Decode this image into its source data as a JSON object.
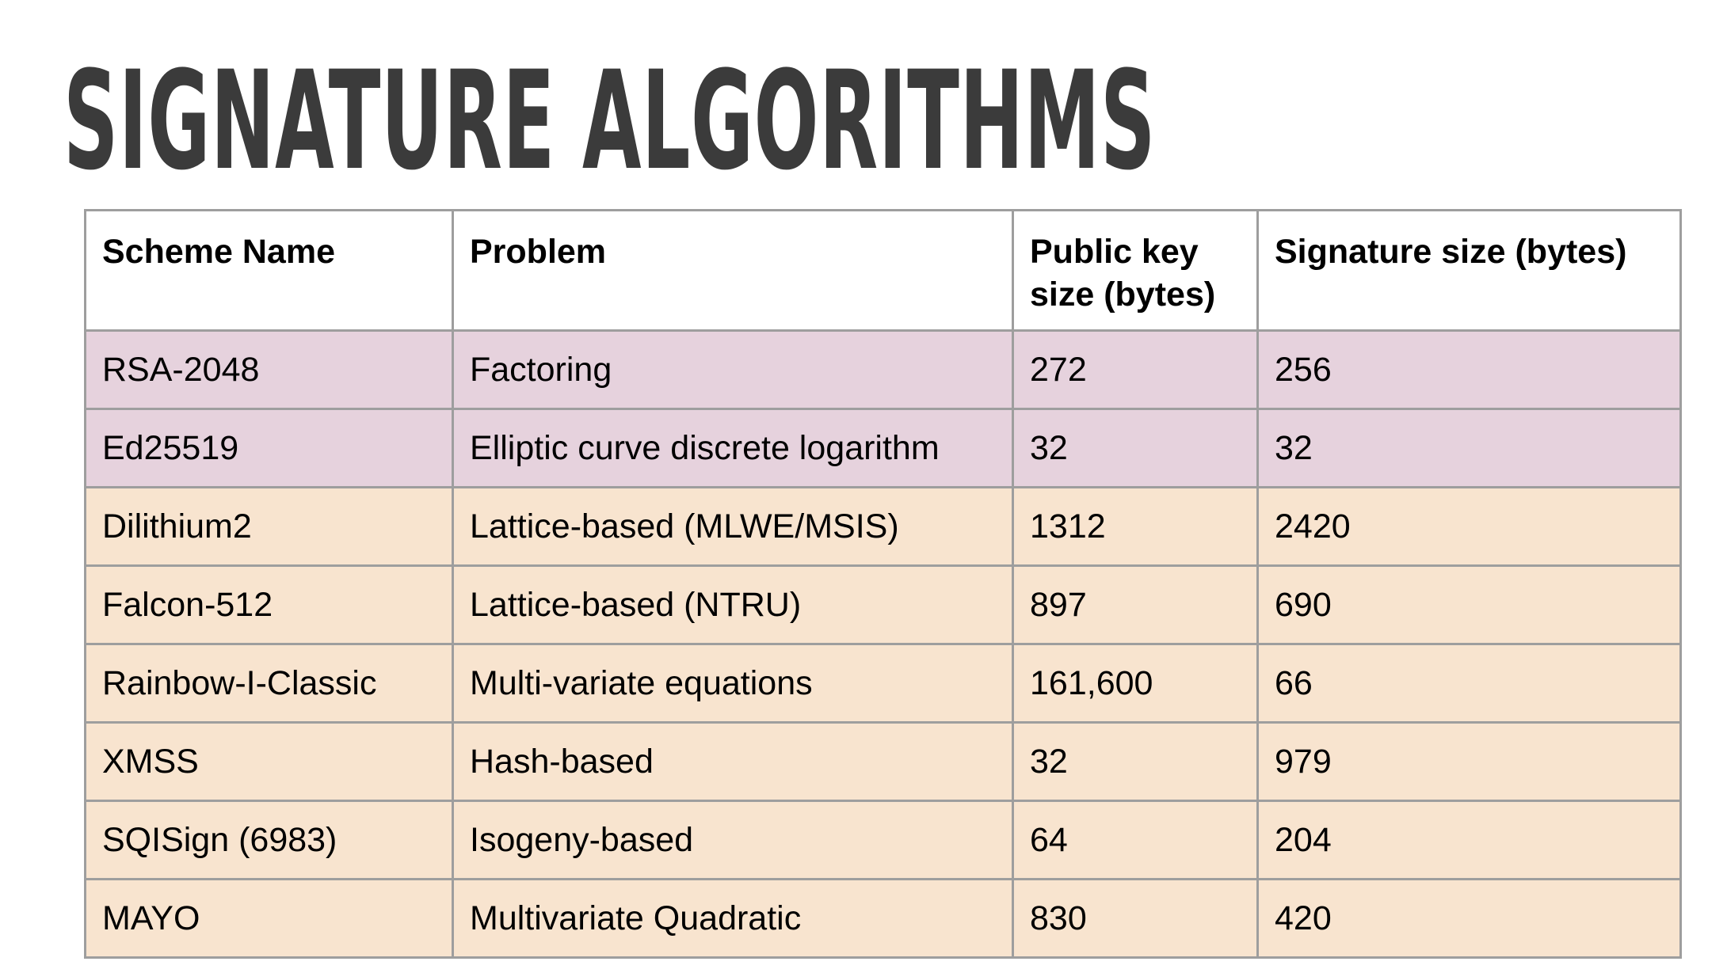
{
  "title": "SIGNATURE ALGORITHMS",
  "table": {
    "headers": [
      "Scheme Name",
      "Problem",
      "Public key size (bytes)",
      "Signature size (bytes)"
    ],
    "rows": [
      {
        "group": "classical",
        "cells": [
          "RSA-2048",
          "Factoring",
          "272",
          "256"
        ]
      },
      {
        "group": "classical",
        "cells": [
          "Ed25519",
          "Elliptic curve discrete logarithm",
          "32",
          "32"
        ]
      },
      {
        "group": "post-quantum",
        "cells": [
          "Dilithium2",
          "Lattice-based (MLWE/MSIS)",
          "1312",
          "2420"
        ]
      },
      {
        "group": "post-quantum",
        "cells": [
          "Falcon-512",
          "Lattice-based (NTRU)",
          "897",
          "690"
        ]
      },
      {
        "group": "post-quantum",
        "cells": [
          "Rainbow-I-Classic",
          "Multi-variate equations",
          "161,600",
          "66"
        ]
      },
      {
        "group": "post-quantum",
        "cells": [
          "XMSS",
          "Hash-based",
          "32",
          "979"
        ]
      },
      {
        "group": "post-quantum",
        "cells": [
          "SQISign (6983)",
          "Isogeny-based",
          "64",
          "204"
        ]
      },
      {
        "group": "post-quantum",
        "cells": [
          "MAYO",
          "Multivariate Quadratic",
          "830",
          "420"
        ]
      }
    ]
  },
  "colors": {
    "title_text": "#3b3b3b",
    "classical_row_bg": "#e6d2dd",
    "post_quantum_row_bg": "#f8e4cf",
    "border": "#9e9e9e",
    "header_bg": "#ffffff"
  }
}
